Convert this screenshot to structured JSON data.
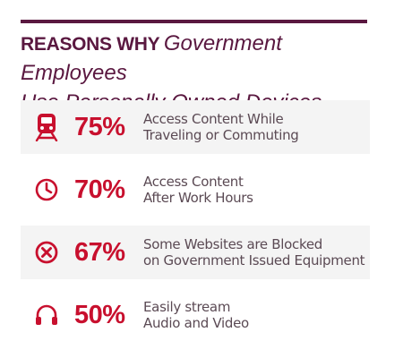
{
  "title": {
    "bold": "REASONS WHY",
    "italic_line1": "Government Employees",
    "italic_line2": "Use  Personally Owned Devices"
  },
  "colors": {
    "title": "#5a1840",
    "accent": "#c8102e",
    "text": "#5b4a54",
    "row_shade": "#f4f4f4"
  },
  "rows": [
    {
      "icon": "train-icon",
      "percent": "75%",
      "line1": "Access Content While",
      "line2": "Traveling or Commuting"
    },
    {
      "icon": "clock-icon",
      "percent": "70%",
      "line1": "Access Content",
      "line2": "After Work Hours"
    },
    {
      "icon": "blocked-icon",
      "percent": "67%",
      "line1": "Some Websites are Blocked",
      "line2": "on Government Issued Equipment"
    },
    {
      "icon": "headphones-icon",
      "percent": "50%",
      "line1": "Easily stream",
      "line2": "Audio and Video"
    }
  ]
}
